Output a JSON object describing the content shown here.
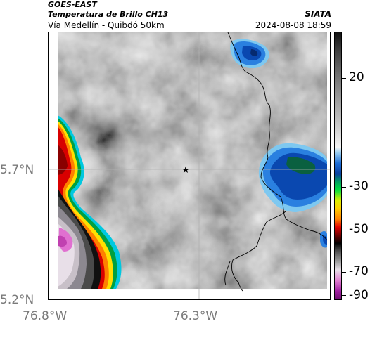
{
  "header": {
    "satellite": "GOES-EAST",
    "product": "Temperatura de Brillo CH13",
    "region": "Vía Medellín - Quibdó 50km",
    "agency": "SIATA",
    "datetime": "2024-08-08 18:59"
  },
  "axes": {
    "y_labels": [
      "5.7°N",
      "5.2°N"
    ],
    "x_labels": [
      "76.8°W",
      "76.3°W"
    ]
  },
  "colorbar": {
    "labels": [
      "20",
      "-30",
      "-50",
      "-70",
      "-90"
    ]
  },
  "marker": {
    "icon": "star-icon"
  },
  "colors": {
    "frame": "#000000",
    "tick_text": "#7a7a7a",
    "gridline": "#b0b0b0"
  }
}
